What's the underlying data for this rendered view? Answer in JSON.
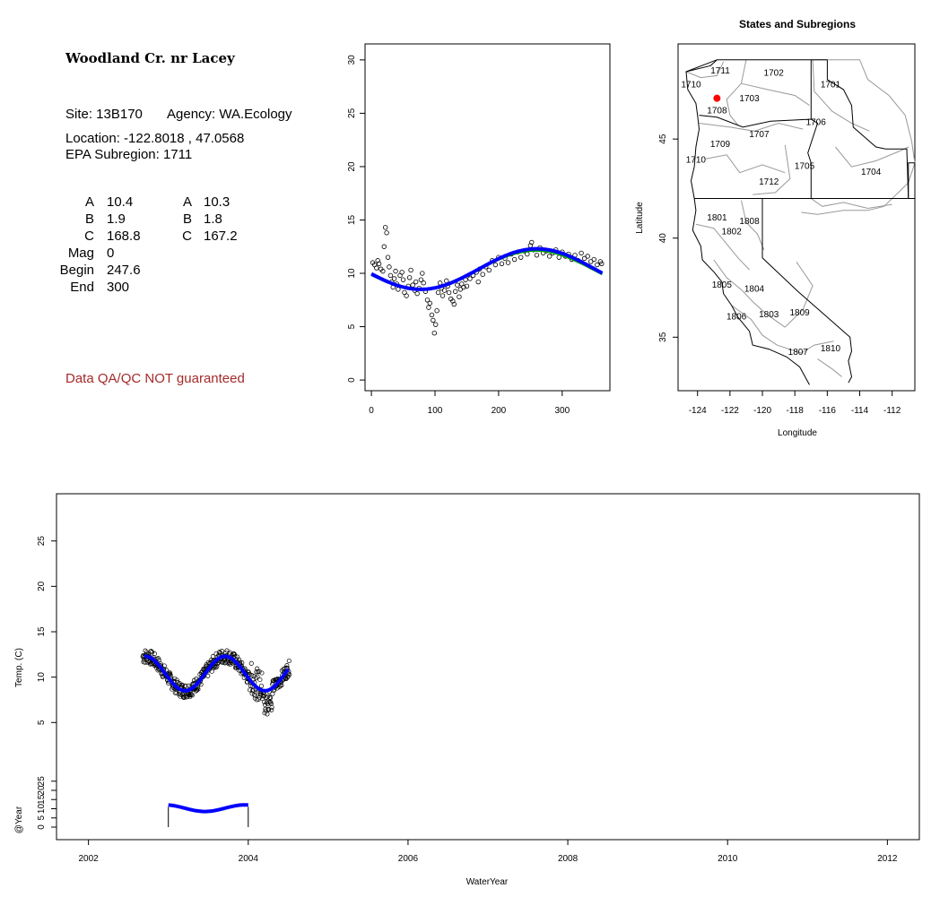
{
  "info_panel": {
    "site_title": "Woodland Cr. nr Lacey",
    "site_line": "Site: 13B170",
    "agency_line": "Agency: WA.Ecology",
    "location_line": "Location: -122.8018 , 47.0568",
    "subregion_line": "EPA Subregion: 1711",
    "coef_col1": [
      {
        "label": "A",
        "value": "10.4"
      },
      {
        "label": "B",
        "value": "1.9"
      },
      {
        "label": "C",
        "value": "168.8"
      },
      {
        "label": "Mag",
        "value": "0"
      },
      {
        "label": "Begin",
        "value": "247.6"
      },
      {
        "label": "End",
        "value": "300"
      }
    ],
    "coef_col2": [
      {
        "label": "A",
        "value": "10.3"
      },
      {
        "label": "B",
        "value": "1.8"
      },
      {
        "label": "C",
        "value": "167.2"
      }
    ],
    "qa_note": "Data QA/QC NOT guaranteed",
    "qa_color": "#a52a2a"
  },
  "chart_data": [
    {
      "type": "scatter",
      "panel": "day-of-year",
      "title": "",
      "xlabel": "",
      "ylabel": "",
      "xlim": [
        -10,
        375
      ],
      "ylim": [
        -1,
        31.5
      ],
      "xticks": [
        "0",
        "100",
        "200",
        "300"
      ],
      "yticks": [
        "0",
        "5",
        "10",
        "15",
        "20",
        "25",
        "30"
      ],
      "points": [
        [
          2,
          11
        ],
        [
          5,
          10.8
        ],
        [
          8,
          10.5
        ],
        [
          10,
          11.2
        ],
        [
          12,
          10.9
        ],
        [
          15,
          10.4
        ],
        [
          18,
          10.2
        ],
        [
          20,
          12.5
        ],
        [
          22,
          14.3
        ],
        [
          24,
          13.8
        ],
        [
          26,
          11.5
        ],
        [
          28,
          10.6
        ],
        [
          30,
          9.8
        ],
        [
          32,
          9.2
        ],
        [
          34,
          8.7
        ],
        [
          36,
          9.5
        ],
        [
          38,
          10.2
        ],
        [
          40,
          9
        ],
        [
          42,
          8.5
        ],
        [
          45,
          9.8
        ],
        [
          48,
          10.1
        ],
        [
          50,
          9.4
        ],
        [
          52,
          8.2
        ],
        [
          55,
          7.9
        ],
        [
          58,
          8.8
        ],
        [
          60,
          9.6
        ],
        [
          62,
          10.3
        ],
        [
          65,
          8.9
        ],
        [
          68,
          8.4
        ],
        [
          70,
          9.2
        ],
        [
          72,
          8.1
        ],
        [
          75,
          8.6
        ],
        [
          78,
          9.4
        ],
        [
          80,
          10
        ],
        [
          82,
          9.1
        ],
        [
          85,
          8.3
        ],
        [
          88,
          7.5
        ],
        [
          90,
          6.8
        ],
        [
          92,
          7.2
        ],
        [
          95,
          6.1
        ],
        [
          97,
          5.6
        ],
        [
          99,
          4.4
        ],
        [
          101,
          5.2
        ],
        [
          103,
          6.5
        ],
        [
          105,
          8.2
        ],
        [
          108,
          9.1
        ],
        [
          110,
          8.6
        ],
        [
          112,
          7.9
        ],
        [
          115,
          8.4
        ],
        [
          118,
          9.3
        ],
        [
          120,
          8.8
        ],
        [
          122,
          8.2
        ],
        [
          125,
          7.6
        ],
        [
          128,
          7.4
        ],
        [
          130,
          7.1
        ],
        [
          132,
          8.3
        ],
        [
          135,
          8.9
        ],
        [
          138,
          7.8
        ],
        [
          140,
          8.5
        ],
        [
          142,
          9
        ],
        [
          145,
          8.7
        ],
        [
          148,
          9.4
        ],
        [
          150,
          8.8
        ],
        [
          155,
          9.5
        ],
        [
          160,
          9.8
        ],
        [
          165,
          10.1
        ],
        [
          168,
          9.2
        ],
        [
          170,
          10.4
        ],
        [
          175,
          9.9
        ],
        [
          180,
          10.6
        ],
        [
          185,
          10.3
        ],
        [
          190,
          11.2
        ],
        [
          195,
          10.8
        ],
        [
          200,
          11.5
        ],
        [
          205,
          10.9
        ],
        [
          210,
          11.4
        ],
        [
          215,
          11
        ],
        [
          220,
          11.8
        ],
        [
          225,
          11.3
        ],
        [
          230,
          12
        ],
        [
          235,
          11.5
        ],
        [
          240,
          12.1
        ],
        [
          245,
          11.8
        ],
        [
          250,
          12.6
        ],
        [
          252,
          12.9
        ],
        [
          255,
          12.2
        ],
        [
          260,
          11.7
        ],
        [
          265,
          12.4
        ],
        [
          270,
          11.9
        ],
        [
          275,
          12.1
        ],
        [
          280,
          11.6
        ],
        [
          285,
          11.9
        ],
        [
          290,
          12.2
        ],
        [
          295,
          11.5
        ],
        [
          300,
          12
        ],
        [
          305,
          11.6
        ],
        [
          310,
          11.8
        ],
        [
          315,
          11.3
        ],
        [
          320,
          11.7
        ],
        [
          325,
          11.2
        ],
        [
          330,
          11.9
        ],
        [
          335,
          11.4
        ],
        [
          340,
          11.6
        ],
        [
          345,
          11.1
        ],
        [
          350,
          11.3
        ],
        [
          355,
          10.8
        ],
        [
          360,
          11.1
        ],
        [
          362,
          10.9
        ]
      ]
    },
    {
      "type": "line",
      "panel": "map",
      "title": "States and Subregions",
      "xlabel": "Longitude",
      "ylabel": "Latitude",
      "xlim": [
        -125.2,
        -110.6
      ],
      "ylim": [
        32.3,
        49.8
      ],
      "xticks": [
        "-124",
        "-122",
        "-120",
        "-118",
        "-116",
        "-114",
        "-112"
      ],
      "yticks": [
        "35",
        "40",
        "45"
      ],
      "site_marker": {
        "lon": -122.8018,
        "lat": 47.0568,
        "color": "#ff0000"
      },
      "subregion_labels": [
        {
          "label": "1711",
          "lon": -122.6,
          "lat": 48.3
        },
        {
          "label": "1702",
          "lon": -119.3,
          "lat": 48.2
        },
        {
          "label": "1701",
          "lon": -115.8,
          "lat": 47.6
        },
        {
          "label": "1710",
          "lon": -124.4,
          "lat": 47.6
        },
        {
          "label": "1703",
          "lon": -120.8,
          "lat": 46.9
        },
        {
          "label": "1708",
          "lon": -122.8,
          "lat": 46.3
        },
        {
          "label": "1706",
          "lon": -116.7,
          "lat": 45.7
        },
        {
          "label": "1707",
          "lon": -120.2,
          "lat": 45.1
        },
        {
          "label": "1709",
          "lon": -122.6,
          "lat": 44.6
        },
        {
          "label": "1710",
          "lon": -124.1,
          "lat": 43.8
        },
        {
          "label": "1705",
          "lon": -117.4,
          "lat": 43.5
        },
        {
          "label": "1704",
          "lon": -113.3,
          "lat": 43.2
        },
        {
          "label": "1712",
          "lon": -119.6,
          "lat": 42.7
        },
        {
          "label": "1801",
          "lon": -122.8,
          "lat": 40.9
        },
        {
          "label": "1808",
          "lon": -120.8,
          "lat": 40.7
        },
        {
          "label": "1802",
          "lon": -121.9,
          "lat": 40.2
        },
        {
          "label": "1805",
          "lon": -122.5,
          "lat": 37.5
        },
        {
          "label": "1804",
          "lon": -120.5,
          "lat": 37.3
        },
        {
          "label": "1806",
          "lon": -121.6,
          "lat": 35.9
        },
        {
          "label": "1803",
          "lon": -119.6,
          "lat": 36
        },
        {
          "label": "1809",
          "lon": -117.7,
          "lat": 36.1
        },
        {
          "label": "1807",
          "lon": -117.8,
          "lat": 34.1
        },
        {
          "label": "1810",
          "lon": -115.8,
          "lat": 34.3
        }
      ]
    },
    {
      "type": "scatter",
      "panel": "timeseries",
      "title": "",
      "xlabel": "WaterYear",
      "ylabel": "Temp. (C)",
      "ylabel_sub": "@Year",
      "xlim": [
        2001.6,
        2012.4
      ],
      "ylim": [
        -7.9,
        30.2
      ],
      "xticks": [
        "2002",
        "2004",
        "2006",
        "2008",
        "2010",
        "2012"
      ],
      "yticks": [
        "5",
        "10",
        "15",
        "20",
        "25"
      ],
      "sub_yticks": [
        "0",
        "5",
        "10",
        "15",
        "20",
        "25"
      ],
      "fit_color": "#0000ff"
    }
  ]
}
